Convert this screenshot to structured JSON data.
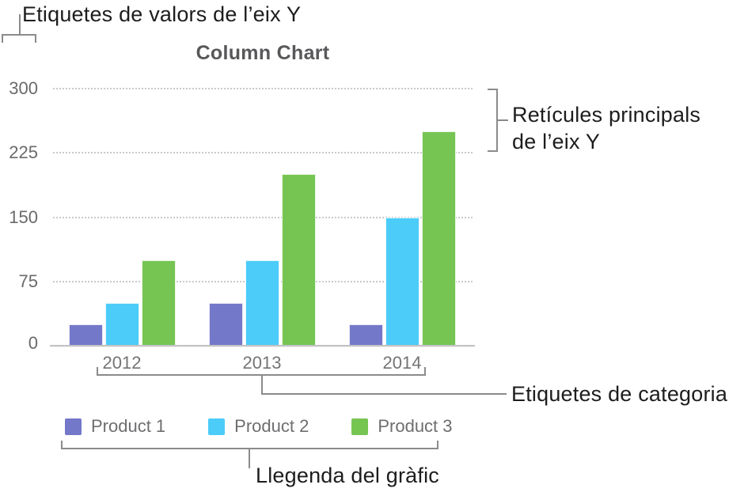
{
  "annotations": {
    "y_value_labels": "Etiquetes de valors de l’eix Y",
    "y_gridlines": "Retícules principals de l’eix Y",
    "category_labels": "Etiquetes de categoria",
    "legend": "Llegenda del gràfic"
  },
  "chart_data": {
    "type": "bar",
    "title": "Column Chart",
    "categories": [
      "2012",
      "2013",
      "2014"
    ],
    "series": [
      {
        "name": "Product 1",
        "color": "#7378c9",
        "values": [
          25,
          50,
          25
        ]
      },
      {
        "name": "Product 2",
        "color": "#4cccf8",
        "values": [
          50,
          100,
          150
        ]
      },
      {
        "name": "Product 3",
        "color": "#76c553",
        "values": [
          100,
          200,
          250
        ]
      }
    ],
    "y_ticks": [
      0,
      75,
      150,
      225,
      300
    ],
    "ylim": [
      0,
      300
    ],
    "grid": "horizontal-dotted",
    "legend_position": "bottom"
  },
  "colors": {
    "callout_line": "#8b8b8b",
    "annotation_text": "#1d1d1f",
    "title_text": "#58585b",
    "axis_text": "#6a6a6d",
    "gridline": "#c9c9cb"
  }
}
